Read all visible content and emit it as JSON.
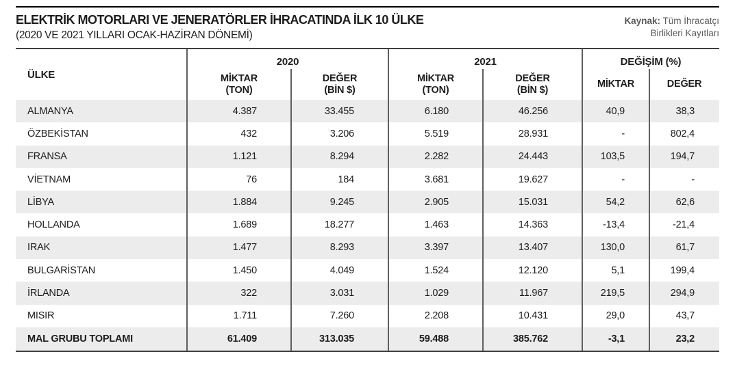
{
  "header": {
    "title": "ELEKTRİK MOTORLARI VE JENERATÖRLER İHRACATINDA İLK 10 ÜLKE",
    "subtitle": "(2020 VE 2021 YILLARI OCAK-HAZİRAN DÖNEMİ)",
    "source": {
      "label": "Kaynak:",
      "line1": " Tüm İhracatçı",
      "line2": "Birlikleri Kayıtları"
    }
  },
  "table": {
    "country_header": "ÜLKE",
    "groups": [
      {
        "label": "2020"
      },
      {
        "label": "2021"
      },
      {
        "label": "DEĞİŞİM (%)"
      }
    ],
    "sub_headers": [
      {
        "line1": "MİKTAR",
        "line2": "(TON)"
      },
      {
        "line1": "DEĞER",
        "line2": "(BİN $)"
      },
      {
        "line1": "MİKTAR",
        "line2": "(TON)"
      },
      {
        "line1": "DEĞER",
        "line2": "(BİN $)"
      },
      {
        "line1": "MİKTAR"
      },
      {
        "line1": "DEĞER"
      }
    ],
    "rows": [
      {
        "country": "ALMANYA",
        "values": [
          "4.387",
          "33.455",
          "6.180",
          "46.256",
          "40,9",
          "38,3"
        ]
      },
      {
        "country": "ÖZBEKİSTAN",
        "values": [
          "432",
          "3.206",
          "5.519",
          "28.931",
          "-",
          "802,4"
        ]
      },
      {
        "country": "FRANSA",
        "values": [
          "1.121",
          "8.294",
          "2.282",
          "24.443",
          "103,5",
          "194,7"
        ]
      },
      {
        "country": "VİETNAM",
        "values": [
          "76",
          "184",
          "3.681",
          "19.627",
          "-",
          "-"
        ]
      },
      {
        "country": "LİBYA",
        "values": [
          "1.884",
          "9.245",
          "2.905",
          "15.031",
          "54,2",
          "62,6"
        ]
      },
      {
        "country": "HOLLANDA",
        "values": [
          "1.689",
          "18.277",
          "1.463",
          "14.363",
          "-13,4",
          "-21,4"
        ]
      },
      {
        "country": "IRAK",
        "values": [
          "1.477",
          "8.293",
          "3.397",
          "13.407",
          "130,0",
          "61,7"
        ]
      },
      {
        "country": "BULGARİSTAN",
        "values": [
          "1.450",
          "4.049",
          "1.524",
          "12.120",
          "5,1",
          "199,4"
        ]
      },
      {
        "country": "İRLANDA",
        "values": [
          "322",
          "3.031",
          "1.029",
          "11.967",
          "219,5",
          "294,9"
        ]
      },
      {
        "country": "MISIR",
        "values": [
          "1.711",
          "7.260",
          "2.208",
          "10.431",
          "29,0",
          "43,7"
        ]
      }
    ],
    "total": {
      "country": "MAL GRUBU TOPLAMI",
      "values": [
        "61.409",
        "313.035",
        "59.488",
        "385.762",
        "-3,1",
        "23,2"
      ]
    }
  },
  "chart_data": {
    "type": "table",
    "title": "ELEKTRİK MOTORLARI VE JENERATÖRLER İHRACATINDA İLK 10 ÜLKE (2020 VE 2021 YILLARI OCAK-HAZİRAN DÖNEMİ)",
    "source": "Kaynak: Tüm İhracatçı Birlikleri Kayıtları",
    "columns": [
      "ÜLKE",
      "2020 MİKTAR (TON)",
      "2020 DEĞER (BİN $)",
      "2021 MİKTAR (TON)",
      "2021 DEĞER (BİN $)",
      "DEĞİŞİM (%) MİKTAR",
      "DEĞİŞİM (%) DEĞER"
    ],
    "rows": [
      [
        "ALMANYA",
        4387,
        33455,
        6180,
        46256,
        40.9,
        38.3
      ],
      [
        "ÖZBEKİSTAN",
        432,
        3206,
        5519,
        28931,
        null,
        802.4
      ],
      [
        "FRANSA",
        1121,
        8294,
        2282,
        24443,
        103.5,
        194.7
      ],
      [
        "VİETNAM",
        76,
        184,
        3681,
        19627,
        null,
        null
      ],
      [
        "LİBYA",
        1884,
        9245,
        2905,
        15031,
        54.2,
        62.6
      ],
      [
        "HOLLANDA",
        1689,
        18277,
        1463,
        14363,
        -13.4,
        -21.4
      ],
      [
        "IRAK",
        1477,
        8293,
        3397,
        13407,
        130.0,
        61.7
      ],
      [
        "BULGARİSTAN",
        1450,
        4049,
        1524,
        12120,
        5.1,
        199.4
      ],
      [
        "İRLANDA",
        322,
        3031,
        1029,
        11967,
        219.5,
        294.9
      ],
      [
        "MISIR",
        1711,
        7260,
        2208,
        10431,
        29.0,
        43.7
      ],
      [
        "MAL GRUBU TOPLAMI",
        61409,
        313035,
        59488,
        385762,
        -3.1,
        23.2
      ]
    ],
    "colors": {
      "stripe": "#ececec",
      "rule_dark": "#3f3f3e",
      "grid_line": "#5e5f61",
      "text": "#1d1d1b",
      "source_text": "#58595b"
    }
  }
}
